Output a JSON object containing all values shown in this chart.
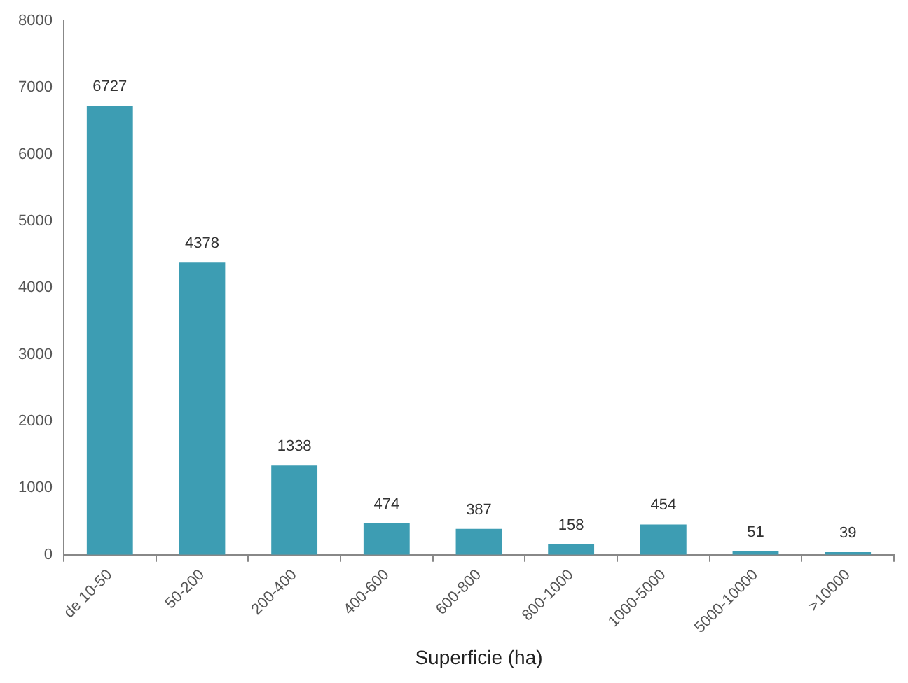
{
  "chart_data": {
    "type": "bar",
    "xlabel": "Superficie (ha)",
    "categories": [
      "de 10-50",
      "50-200",
      "200-400",
      "400-600",
      "600-800",
      "800-1000",
      "1000-5000",
      "5000-10000",
      ">10000"
    ],
    "values": [
      6727,
      4378,
      1338,
      474,
      387,
      158,
      454,
      51,
      39
    ],
    "color": "#3d9db3",
    "ylim": [
      0,
      8000
    ],
    "yticks": [
      0,
      1000,
      2000,
      3000,
      4000,
      5000,
      6000,
      7000,
      8000
    ],
    "grid": false,
    "data_labels": true
  }
}
